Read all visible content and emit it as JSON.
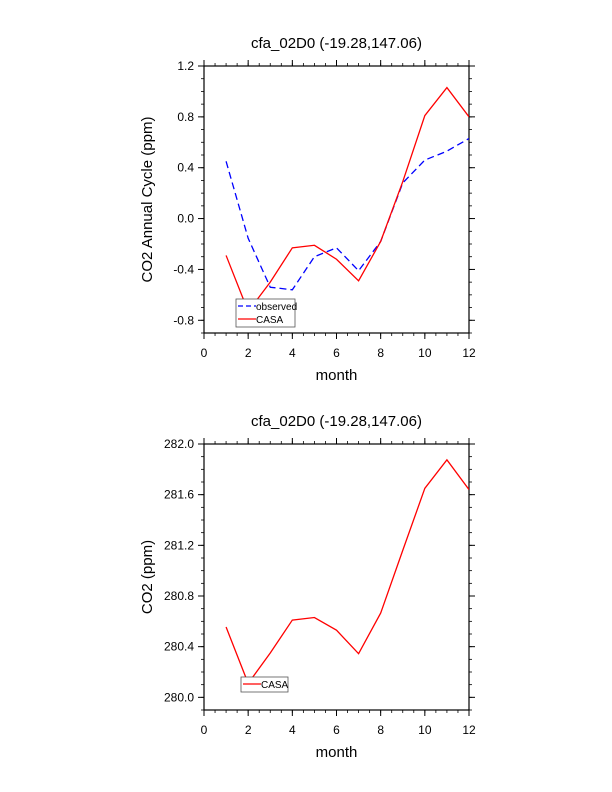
{
  "chart_data": [
    {
      "type": "line",
      "title": "cfa_02D0 (-19.28,147.06)",
      "xlabel": "month",
      "ylabel": "CO2 Annual Cycle (ppm)",
      "xlim": [
        0,
        12
      ],
      "ylim": [
        -0.9,
        1.2
      ],
      "xticks": [
        0,
        2,
        4,
        6,
        8,
        10,
        12
      ],
      "xtick_labels": [
        "0",
        "2",
        "4",
        "6",
        "8",
        "10",
        "12"
      ],
      "yticks": [
        -0.8,
        -0.4,
        0.0,
        0.4,
        0.8,
        1.2
      ],
      "ytick_labels": [
        "-0.8",
        "-0.4",
        "0.0",
        "0.4",
        "0.8",
        "1.2"
      ],
      "x_minor_step": 0.5,
      "y_minor_step": 0.1,
      "legend_position": "bottom-left",
      "x": [
        1,
        2,
        3,
        4,
        5,
        6,
        7,
        8,
        9,
        10,
        11,
        12
      ],
      "series": [
        {
          "name": "observed",
          "color": "#0000ff",
          "dash": true,
          "values": [
            0.45,
            -0.155,
            -0.54,
            -0.56,
            -0.3,
            -0.23,
            -0.41,
            -0.18,
            0.28,
            0.46,
            0.53,
            0.63
          ]
        },
        {
          "name": "CASA",
          "color": "#ff0000",
          "dash": false,
          "values": [
            -0.29,
            -0.73,
            -0.5,
            -0.23,
            -0.21,
            -0.32,
            -0.49,
            -0.18,
            0.29,
            0.81,
            1.03,
            0.8
          ]
        }
      ]
    },
    {
      "type": "line",
      "title": "cfa_02D0 (-19.28,147.06)",
      "xlabel": "month",
      "ylabel": "CO2 (ppm)",
      "xlim": [
        0,
        12
      ],
      "ylim": [
        279.9,
        282.0
      ],
      "xticks": [
        0,
        2,
        4,
        6,
        8,
        10,
        12
      ],
      "xtick_labels": [
        "0",
        "2",
        "4",
        "6",
        "8",
        "10",
        "12"
      ],
      "yticks": [
        280.0,
        280.4,
        280.8,
        281.2,
        281.6,
        282.0
      ],
      "ytick_labels": [
        "280.0",
        "280.4",
        "280.8",
        "281.2",
        "281.6",
        "282.0"
      ],
      "x_minor_step": 0.5,
      "y_minor_step": 0.1,
      "legend_position": "bottom-left",
      "x": [
        1,
        2,
        3,
        4,
        5,
        6,
        7,
        8,
        9,
        10,
        11,
        12
      ],
      "series": [
        {
          "name": "CASA",
          "color": "#ff0000",
          "dash": false,
          "values": [
            280.555,
            280.11,
            280.35,
            280.61,
            280.63,
            280.53,
            280.345,
            280.665,
            281.16,
            281.65,
            281.875,
            281.64
          ]
        }
      ]
    }
  ]
}
